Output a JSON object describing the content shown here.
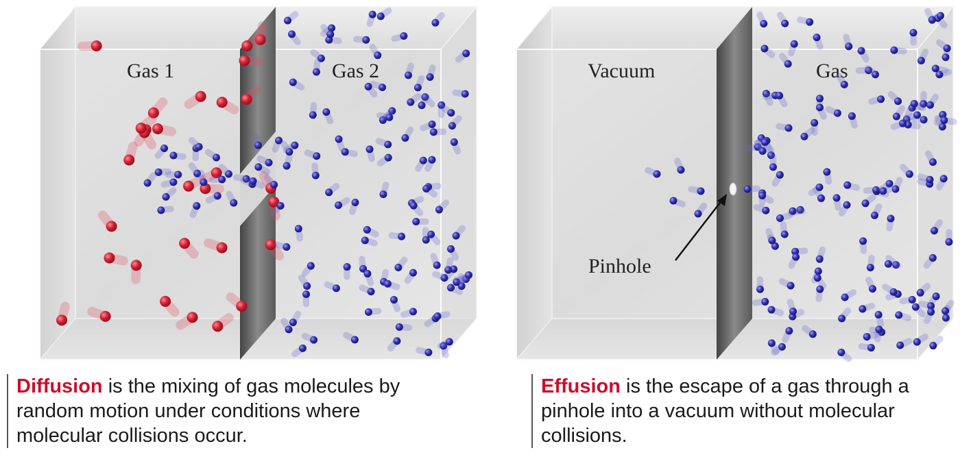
{
  "diffusion": {
    "left_label": "Gas 1",
    "right_label": "Gas 2",
    "caption_term": "Diffusion",
    "caption_rest": " is the mixing of gas molecules by random motion under conditions where molecular collisions occur."
  },
  "effusion": {
    "left_label": "Vacuum",
    "right_label": "Gas",
    "pinhole_label": "Pinhole",
    "caption_term": "Effusion",
    "caption_rest": " is the escape of a gas through a pinhole into a vacuum without molecular collisions."
  },
  "colors": {
    "gas1_molecule": "#cc2233",
    "gas2_molecule": "#2a2a9a",
    "partition": "#555555",
    "keyword": "#c8102e"
  }
}
